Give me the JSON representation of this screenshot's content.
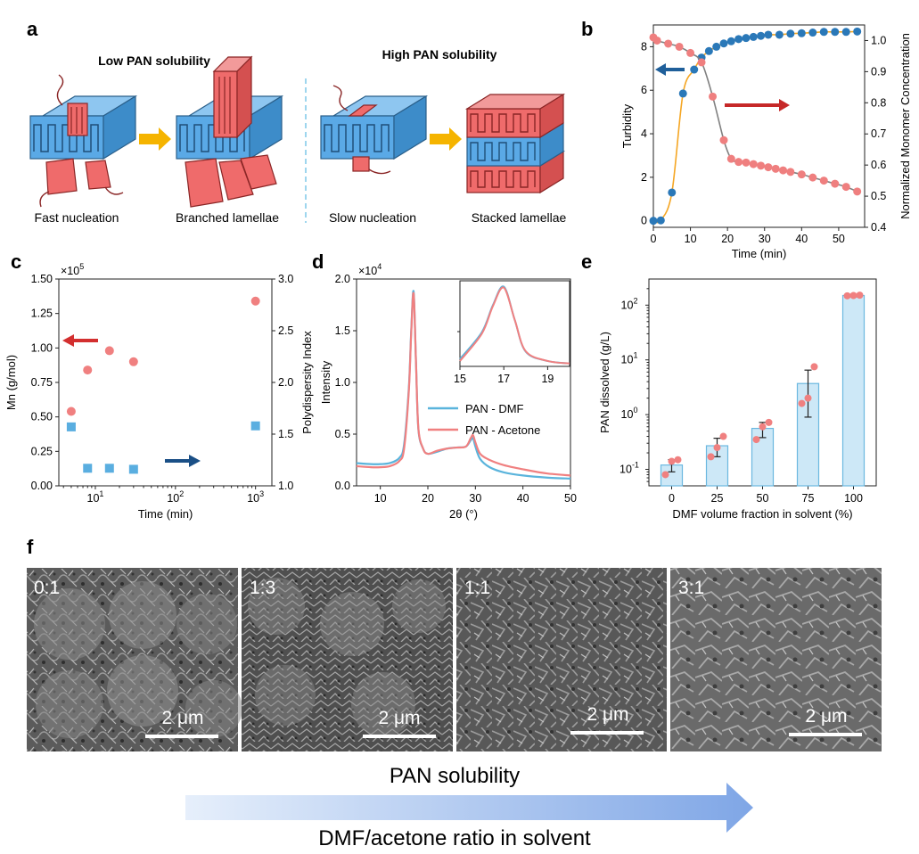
{
  "panel_letters": {
    "a": "a",
    "b": "b",
    "c": "c",
    "d": "d",
    "e": "e",
    "f": "f"
  },
  "panel_a": {
    "left_title": "Low PAN solubility",
    "right_title": "High PAN solubility",
    "captions": [
      "Fast nucleation",
      "Branched lamellae",
      "Slow nucleation",
      "Stacked lamellae"
    ],
    "colors": {
      "blue": "#5aa9e6",
      "red": "#ef6b6b",
      "arrow": "#f5b400",
      "divider": "#7ec8e8"
    }
  },
  "panel_f": {
    "ratios": [
      "0:1",
      "1:3",
      "1:1",
      "3:1"
    ],
    "scale_bar": "2 μm",
    "bottom_title": "PAN solubility",
    "bottom_subtitle": "DMF/acetone ratio in solvent"
  },
  "chart_data": [
    {
      "panel": "b",
      "type": "line",
      "xlabel": "Time (min)",
      "ylabel": "Turbidity",
      "ylabel_right": "Normalized Monomer Concentration",
      "xlim": [
        0,
        57
      ],
      "ylim": [
        -0.3,
        9
      ],
      "ylim_right": [
        0.4,
        1.05
      ],
      "xticks": [
        0,
        10,
        20,
        30,
        40,
        50
      ],
      "yticks": [
        0,
        2,
        4,
        6,
        8
      ],
      "yticks_right": [
        0.4,
        0.5,
        0.6,
        0.7,
        0.8,
        0.9,
        1.0
      ],
      "series": [
        {
          "axis": "left",
          "color": "#2a78b8",
          "line_color": "#f5a623",
          "x": [
            0,
            2,
            5,
            8,
            11,
            13,
            15,
            17,
            19,
            21,
            23,
            25,
            27,
            29,
            31,
            34,
            37,
            40,
            43,
            46,
            49,
            52,
            55
          ],
          "y": [
            0,
            0.02,
            1.3,
            5.85,
            6.95,
            7.5,
            7.8,
            8.0,
            8.15,
            8.25,
            8.35,
            8.4,
            8.45,
            8.5,
            8.55,
            8.55,
            8.6,
            8.62,
            8.65,
            8.68,
            8.68,
            8.68,
            8.7
          ]
        },
        {
          "axis": "right",
          "color": "#ef7f7f",
          "line_color": "#808080",
          "x": [
            0,
            1,
            4,
            7,
            10,
            13,
            16,
            19,
            21,
            23,
            25,
            27,
            29,
            31,
            33,
            35,
            37,
            40,
            43,
            46,
            49,
            52,
            55
          ],
          "y": [
            1.01,
            1.0,
            0.99,
            0.98,
            0.96,
            0.93,
            0.82,
            0.68,
            0.62,
            0.61,
            0.608,
            0.603,
            0.598,
            0.593,
            0.588,
            0.583,
            0.578,
            0.57,
            0.56,
            0.55,
            0.54,
            0.53,
            0.515
          ]
        }
      ]
    },
    {
      "panel": "c",
      "type": "scatter",
      "xlabel": "Time (min)",
      "ylabel": "Mn (g/mol)",
      "ylabel_right": "Polydispersity Index",
      "exponent_label": "×10",
      "exponent": "5",
      "xscale": "log",
      "xlim": [
        3.5,
        1600
      ],
      "ylim": [
        0,
        1.5
      ],
      "ylim_right": [
        1.0,
        3.0
      ],
      "xticks": [
        10,
        100,
        1000
      ],
      "xtick_labels": [
        "10",
        "10",
        "10"
      ],
      "xtick_sups": [
        "1",
        "2",
        "3"
      ],
      "yticks": [
        0,
        0.25,
        0.5,
        0.75,
        1.0,
        1.25,
        1.5
      ],
      "ytick_labels": [
        "0.00",
        "0.25",
        "0.50",
        "0.75",
        "1.00",
        "1.25",
        "1.50"
      ],
      "yticks_right": [
        1.0,
        1.5,
        2.0,
        2.5,
        3.0
      ],
      "series": [
        {
          "axis": "left",
          "color": "#f08080",
          "marker": "circle",
          "x": [
            5,
            8,
            15,
            30,
            1000
          ],
          "y": [
            0.54,
            0.84,
            0.98,
            0.9,
            1.34
          ]
        },
        {
          "axis": "right",
          "color": "#5aaee0",
          "marker": "square",
          "x": [
            5,
            8,
            15,
            30,
            1000
          ],
          "y": [
            1.57,
            1.17,
            1.17,
            1.16,
            1.58
          ]
        }
      ]
    },
    {
      "panel": "d",
      "type": "line",
      "xlabel": "2θ (°)",
      "ylabel": "Intensity",
      "exponent_label": "×10",
      "exponent": "4",
      "xlim": [
        5,
        50
      ],
      "ylim": [
        0,
        2.0
      ],
      "xticks": [
        10,
        20,
        30,
        40,
        50
      ],
      "yticks": [
        0,
        0.5,
        1.0,
        1.5,
        2.0
      ],
      "ytick_labels": [
        "0.0",
        "0.5",
        "1.0",
        "1.5",
        "2.0"
      ],
      "legend": [
        "PAN - DMF",
        "PAN - Acetone"
      ],
      "inset": {
        "xlim": [
          15,
          20
        ],
        "xticks": [
          15,
          17,
          19
        ]
      },
      "series": [
        {
          "name": "PAN - DMF",
          "color": "#5ab4dc",
          "x": [
            5,
            8,
            10,
            12,
            14,
            15,
            16,
            16.5,
            17,
            17.5,
            18,
            19,
            20,
            22,
            24,
            26,
            28,
            29,
            29.5,
            30,
            31,
            33,
            36,
            40,
            45,
            50
          ],
          "y": [
            0.22,
            0.21,
            0.21,
            0.22,
            0.27,
            0.4,
            0.95,
            1.5,
            1.88,
            1.2,
            0.55,
            0.36,
            0.31,
            0.33,
            0.36,
            0.37,
            0.38,
            0.44,
            0.46,
            0.38,
            0.26,
            0.18,
            0.13,
            0.1,
            0.08,
            0.07
          ]
        },
        {
          "name": "PAN - Acetone",
          "color": "#f08080",
          "x": [
            5,
            8,
            10,
            12,
            14,
            15,
            16,
            16.5,
            17,
            17.5,
            18,
            19,
            20,
            22,
            24,
            26,
            28,
            29,
            29.5,
            30,
            31,
            33,
            36,
            40,
            45,
            50
          ],
          "y": [
            0.19,
            0.18,
            0.18,
            0.19,
            0.24,
            0.36,
            0.92,
            1.48,
            1.86,
            1.2,
            0.56,
            0.36,
            0.31,
            0.34,
            0.36,
            0.37,
            0.38,
            0.46,
            0.49,
            0.42,
            0.31,
            0.25,
            0.2,
            0.16,
            0.12,
            0.1
          ]
        }
      ]
    },
    {
      "panel": "e",
      "type": "bar",
      "xlabel": "DMF volume fraction in solvent (%)",
      "ylabel": "PAN dissolved (g/L)",
      "yscale": "log",
      "categories": [
        "0",
        "25",
        "50",
        "75",
        "100"
      ],
      "values": [
        0.12,
        0.27,
        0.56,
        3.7,
        150
      ],
      "error_low": [
        0.09,
        0.17,
        0.38,
        0.9,
        142
      ],
      "error_high": [
        0.15,
        0.37,
        0.72,
        6.5,
        158
      ],
      "points": [
        [
          0.08,
          0.14,
          0.15
        ],
        [
          0.17,
          0.25,
          0.4
        ],
        [
          0.35,
          0.6,
          0.72
        ],
        [
          1.6,
          2.0,
          7.5
        ],
        [
          148,
          150,
          152
        ]
      ],
      "ylim": [
        0.05,
        300
      ],
      "ytick_labels": [
        "10",
        "10",
        "10",
        "10",
        "10"
      ],
      "ytick_sups": [
        "-1",
        "0",
        "1",
        "2",
        ""
      ],
      "bar_color": "#cde8f7",
      "bar_edge": "#6bb8e0",
      "point_color": "#f08080"
    }
  ]
}
